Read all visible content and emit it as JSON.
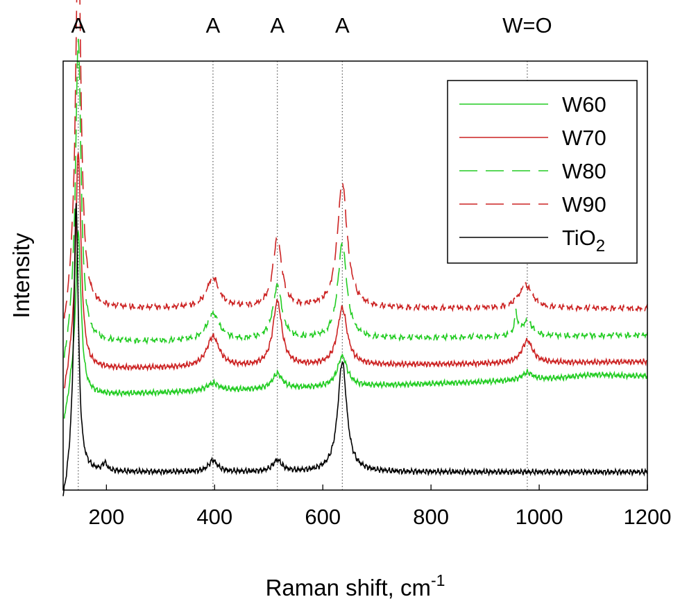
{
  "chart_data": {
    "type": "line",
    "title": "",
    "xlabel_main": "Raman shift, cm",
    "xlabel_sup": "-1",
    "ylabel": "Intensity",
    "xlim": [
      120,
      1200
    ],
    "x_ticks": [
      200,
      400,
      600,
      800,
      1000,
      1200
    ],
    "y_ticks": [],
    "grid": false,
    "legend_position": "top-right",
    "annotations": [
      {
        "label": "A",
        "x": 148
      },
      {
        "label": "A",
        "x": 397
      },
      {
        "label": "A",
        "x": 516
      },
      {
        "label": "A",
        "x": 636
      },
      {
        "label": "W=O",
        "x": 978
      }
    ],
    "series": [
      {
        "name": "W60",
        "color": "#22cc22",
        "dash": "solid",
        "baseline": 0.2,
        "baseline_end": 0.25,
        "peaks": [
          [
            148,
            0.43,
            6
          ],
          [
            397,
            0.02,
            14
          ],
          [
            516,
            0.04,
            11
          ],
          [
            636,
            0.08,
            11
          ],
          [
            978,
            0.02,
            12
          ],
          [
            1100,
            0.01,
            60
          ]
        ]
      },
      {
        "name": "W70",
        "color": "#cc2222",
        "dash": "solid",
        "baseline": 0.27,
        "baseline_end": 0.29,
        "peaks": [
          [
            148,
            0.57,
            6
          ],
          [
            397,
            0.08,
            14
          ],
          [
            516,
            0.17,
            10
          ],
          [
            636,
            0.15,
            11
          ],
          [
            978,
            0.06,
            12
          ]
        ]
      },
      {
        "name": "W80",
        "color": "#22cc22",
        "dash": "dashed",
        "baseline": 0.34,
        "baseline_end": 0.36,
        "peaks": [
          [
            148,
            0.8,
            6
          ],
          [
            397,
            0.07,
            14
          ],
          [
            516,
            0.14,
            10
          ],
          [
            636,
            0.25,
            10
          ],
          [
            957,
            0.06,
            3
          ],
          [
            978,
            0.04,
            12
          ]
        ]
      },
      {
        "name": "W90",
        "color": "#cc2222",
        "dash": "dashed",
        "baseline": 0.43,
        "baseline_end": 0.43,
        "peaks": [
          [
            148,
            1.0,
            6
          ],
          [
            397,
            0.08,
            14
          ],
          [
            516,
            0.18,
            10
          ],
          [
            636,
            0.33,
            11
          ],
          [
            975,
            0.06,
            15
          ]
        ]
      },
      {
        "name": "TiO",
        "name_sub": "2",
        "color": "#000000",
        "dash": "solid",
        "baseline": 0.0,
        "baseline_end": 0.0,
        "peaks": [
          [
            144,
            0.7,
            5
          ],
          [
            197,
            0.02,
            5
          ],
          [
            397,
            0.03,
            10
          ],
          [
            516,
            0.03,
            10
          ],
          [
            636,
            0.29,
            10
          ]
        ]
      }
    ]
  }
}
